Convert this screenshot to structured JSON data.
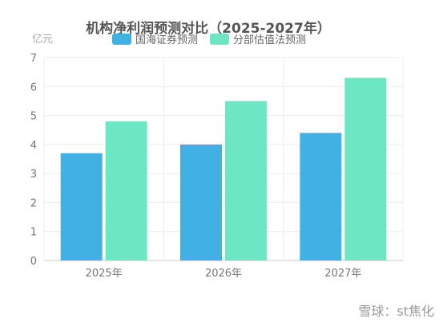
{
  "chart_data": {
    "type": "bar",
    "title": "机构净利润预测对比（2025-2027年）",
    "ylabel": "亿元",
    "categories": [
      "2025年",
      "2026年",
      "2027年"
    ],
    "series": [
      {
        "name": "国海证券预测",
        "values": [
          3.7,
          4.0,
          4.4
        ],
        "color": "#41b0e3"
      },
      {
        "name": "分部估值法预测",
        "values": [
          4.8,
          5.5,
          6.3
        ],
        "color": "#6ce6c3"
      }
    ],
    "ylim": [
      0,
      7
    ],
    "yticks": [
      "0",
      "1",
      "2",
      "3",
      "4",
      "5",
      "6",
      "7"
    ],
    "grid": true,
    "legend_position": "top-center"
  },
  "watermark": {
    "text": "雪球：st焦化"
  }
}
